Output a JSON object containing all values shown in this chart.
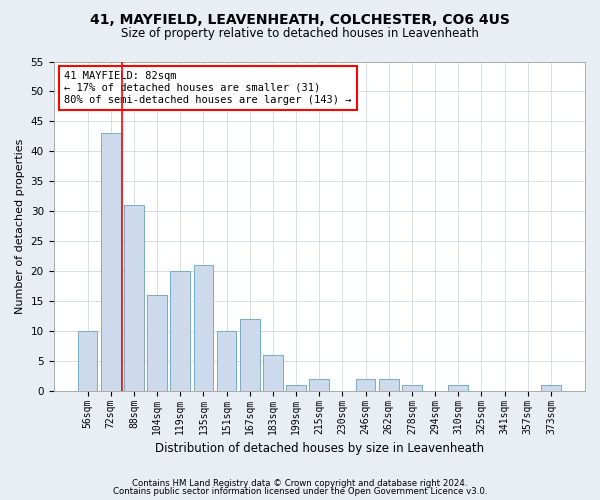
{
  "title1": "41, MAYFIELD, LEAVENHEATH, COLCHESTER, CO6 4US",
  "title2": "Size of property relative to detached houses in Leavenheath",
  "xlabel": "Distribution of detached houses by size in Leavenheath",
  "ylabel": "Number of detached properties",
  "categories": [
    "56sqm",
    "72sqm",
    "88sqm",
    "104sqm",
    "119sqm",
    "135sqm",
    "151sqm",
    "167sqm",
    "183sqm",
    "199sqm",
    "215sqm",
    "230sqm",
    "246sqm",
    "262sqm",
    "278sqm",
    "294sqm",
    "310sqm",
    "325sqm",
    "341sqm",
    "357sqm",
    "373sqm"
  ],
  "values": [
    10,
    43,
    31,
    16,
    20,
    21,
    10,
    12,
    6,
    1,
    2,
    0,
    2,
    2,
    1,
    0,
    1,
    0,
    0,
    0,
    1
  ],
  "bar_color": "#ccdaeb",
  "bar_edge_color": "#7aaac8",
  "red_line_x": 1.5,
  "ylim": [
    0,
    55
  ],
  "yticks": [
    0,
    5,
    10,
    15,
    20,
    25,
    30,
    35,
    40,
    45,
    50,
    55
  ],
  "annotation_text_line1": "41 MAYFIELD: 82sqm",
  "annotation_text_line2": "← 17% of detached houses are smaller (31)",
  "annotation_text_line3": "80% of semi-detached houses are larger (143) →",
  "footer1": "Contains HM Land Registry data © Crown copyright and database right 2024.",
  "footer2": "Contains public sector information licensed under the Open Government Licence v3.0.",
  "background_color": "#e8eef4",
  "plot_background_color": "#ffffff"
}
